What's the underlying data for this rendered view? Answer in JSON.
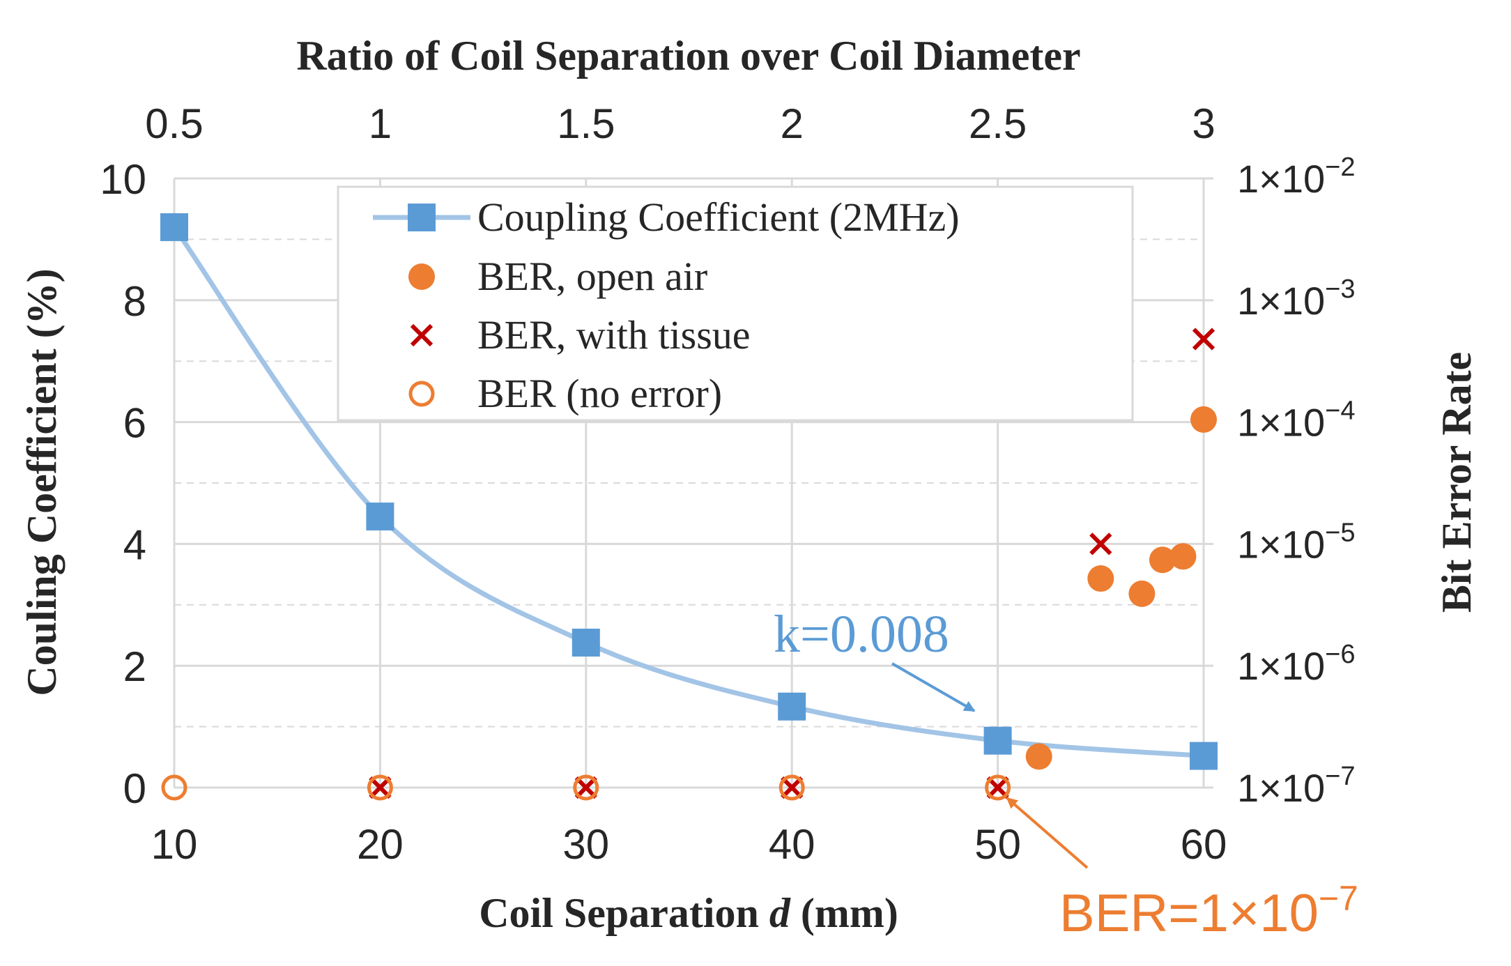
{
  "chart_data": {
    "type": "line",
    "top_axis": {
      "title": "Ratio of Coil Separation over Coil Diameter",
      "ticks": [
        "0.5",
        "1",
        "1.5",
        "2",
        "2.5",
        "3"
      ]
    },
    "x_axis": {
      "title_prefix": "Coil Separation ",
      "title_var": "d",
      "title_suffix": " (mm)",
      "range": [
        10,
        60
      ],
      "ticks": [
        "10",
        "20",
        "30",
        "40",
        "50",
        "60"
      ]
    },
    "y_left": {
      "title": "Couling Coefficient (%)",
      "range": [
        0,
        10
      ],
      "ticks": [
        "0",
        "2",
        "4",
        "6",
        "8",
        "10"
      ]
    },
    "y_right": {
      "title": "Bit Error Rate",
      "scale": "log",
      "exp_range": [
        -7,
        -2
      ],
      "tick_base": "1×10",
      "tick_exponents": [
        "−7",
        "−6",
        "−5",
        "−4",
        "−3",
        "−2"
      ]
    },
    "legend": {
      "position": "top-center",
      "entries": [
        "Coupling Coefficient (2MHz)",
        "BER, open air",
        "BER, with tissue",
        "BER (no error)"
      ]
    },
    "series": [
      {
        "name": "Coupling Coefficient (2MHz)",
        "axis": "left",
        "color": "#5B9BD5",
        "line_color": "#A2C4E6",
        "marker": "square",
        "points": [
          [
            10,
            9.2
          ],
          [
            20,
            4.45
          ],
          [
            30,
            2.38
          ],
          [
            40,
            1.33
          ],
          [
            50,
            0.77
          ],
          [
            60,
            0.52
          ]
        ]
      },
      {
        "name": "BER, open air",
        "axis": "right",
        "color": "#ED7D31",
        "marker": "filled-circle",
        "points": [
          [
            52,
            1.8e-07
          ],
          [
            55,
            5.2e-06
          ],
          [
            57,
            3.9e-06
          ],
          [
            58,
            7.4e-06
          ],
          [
            59,
            7.9e-06
          ],
          [
            60,
            0.000105
          ]
        ]
      },
      {
        "name": "BER, with tissue",
        "axis": "right",
        "color": "#C00000",
        "marker": "x",
        "points": [
          [
            20,
            1e-07
          ],
          [
            30,
            1e-07
          ],
          [
            40,
            1e-07
          ],
          [
            50,
            1e-07
          ],
          [
            55,
            1e-05
          ],
          [
            60,
            0.00048
          ]
        ]
      },
      {
        "name": "BER (no error)",
        "axis": "right",
        "color": "#ED7D31",
        "marker": "open-circle",
        "points": [
          [
            10,
            1e-07
          ],
          [
            20,
            1e-07
          ],
          [
            30,
            1e-07
          ],
          [
            40,
            1e-07
          ],
          [
            50,
            1e-07
          ]
        ]
      }
    ],
    "annotations": [
      {
        "text": "k=0.008",
        "color": "#5B9BD5",
        "target": [
          50,
          0.77
        ]
      },
      {
        "text_base": "BER=1×10",
        "text_exp": "−7",
        "color": "#ED7D31",
        "target": [
          50,
          1e-07
        ]
      }
    ],
    "grid": true
  }
}
